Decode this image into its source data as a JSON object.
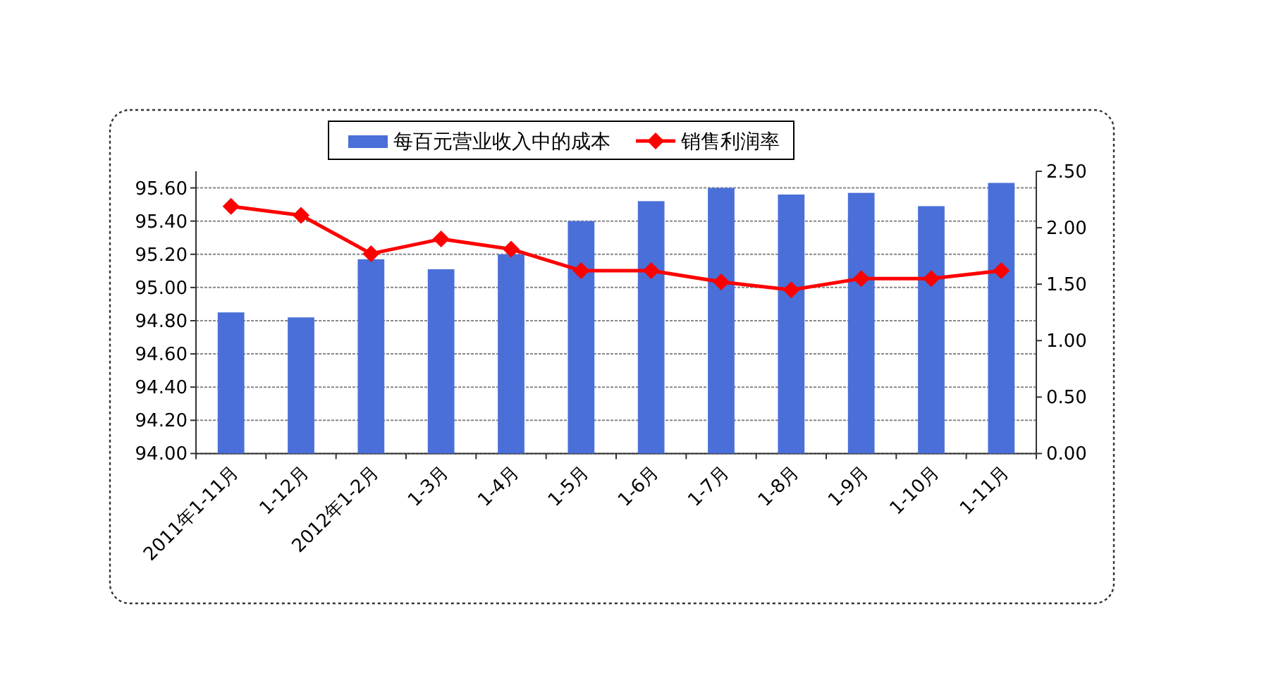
{
  "chart_data": {
    "type": "bar",
    "categories": [
      "2011年1-11月",
      "1-12月",
      "2012年1-2月",
      "1-3月",
      "1-4月",
      "1-5月",
      "1-6月",
      "1-7月",
      "1-8月",
      "1-9月",
      "1-10月",
      "1-11月"
    ],
    "series": [
      {
        "name": "每百元营业收入中的成本",
        "color": "#4a6fd8",
        "values": [
          94.85,
          94.82,
          95.17,
          95.11,
          95.2,
          95.4,
          95.52,
          95.6,
          95.56,
          95.57,
          95.49,
          95.63
        ]
      },
      {
        "name": "销售利润率",
        "type": "line",
        "axis": "y2",
        "color": "#ff0000",
        "marker": "diamond",
        "values": [
          2.19,
          2.11,
          1.77,
          1.9,
          1.81,
          1.62,
          1.62,
          1.52,
          1.45,
          1.55,
          1.55,
          1.62
        ]
      }
    ],
    "ylim": [
      94,
      95.7
    ],
    "yticks": [
      {
        "value": 94,
        "label": "94.00"
      },
      {
        "value": 94.2,
        "label": "94.20"
      },
      {
        "value": 94.4,
        "label": "94.40"
      },
      {
        "value": 94.6,
        "label": "94.60"
      },
      {
        "value": 94.8,
        "label": "94.80"
      },
      {
        "value": 95,
        "label": "95.00"
      },
      {
        "value": 95.2,
        "label": "95.20"
      },
      {
        "value": 95.4,
        "label": "95.40"
      },
      {
        "value": 95.6,
        "label": "95.60"
      }
    ],
    "y2lim": [
      0,
      2.5
    ],
    "y2ticks": [
      {
        "value": 0,
        "label": "0.00"
      },
      {
        "value": 0.5,
        "label": "0.50"
      },
      {
        "value": 1,
        "label": "1.00"
      },
      {
        "value": 1.5,
        "label": "1.50"
      },
      {
        "value": 2,
        "label": "2.00"
      },
      {
        "value": 2.5,
        "label": "2.50"
      }
    ],
    "grid": "y",
    "legend": "top"
  }
}
